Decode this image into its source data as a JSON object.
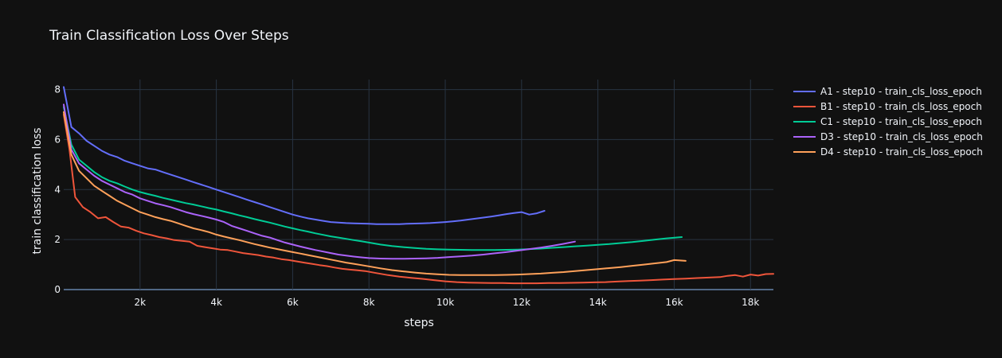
{
  "chart_data": {
    "type": "line",
    "title": "Train Classification Loss Over Steps",
    "xlabel": "steps",
    "ylabel": "train classification loss",
    "xlim": [
      0,
      18600
    ],
    "ylim": [
      0,
      8.4
    ],
    "grid": true,
    "legend_position": "top-right",
    "theme": {
      "background": "#111111",
      "grid": "#283442",
      "text": "#f2f5fa"
    },
    "x_ticks": [
      {
        "value": 2000,
        "label": "2k"
      },
      {
        "value": 4000,
        "label": "4k"
      },
      {
        "value": 6000,
        "label": "6k"
      },
      {
        "value": 8000,
        "label": "8k"
      },
      {
        "value": 10000,
        "label": "10k"
      },
      {
        "value": 12000,
        "label": "12k"
      },
      {
        "value": 14000,
        "label": "14k"
      },
      {
        "value": 16000,
        "label": "16k"
      },
      {
        "value": 18000,
        "label": "18k"
      }
    ],
    "y_ticks": [
      {
        "value": 0,
        "label": "0"
      },
      {
        "value": 2,
        "label": "2"
      },
      {
        "value": 4,
        "label": "4"
      },
      {
        "value": 6,
        "label": "6"
      },
      {
        "value": 8,
        "label": "8"
      }
    ],
    "series": [
      {
        "name": "A1 - step10 - train_cls_loss_epoch",
        "color": "#636efa",
        "x": [
          0,
          200,
          400,
          600,
          800,
          1000,
          1200,
          1400,
          1600,
          1800,
          2000,
          2200,
          2400,
          2600,
          2800,
          3000,
          3200,
          3400,
          3600,
          3800,
          4000,
          4200,
          4400,
          4600,
          4800,
          5000,
          5200,
          5400,
          5600,
          5800,
          6000,
          6200,
          6400,
          6600,
          6800,
          7000,
          7200,
          7400,
          7600,
          7800,
          8000,
          8200,
          8400,
          8600,
          8800,
          9000,
          9200,
          9400,
          9600,
          9800,
          10000,
          10200,
          10400,
          10600,
          10800,
          11000,
          11200,
          11400,
          11600,
          11800,
          12000,
          12200,
          12400,
          12600
        ],
        "y": [
          8.1,
          6.5,
          6.25,
          5.95,
          5.75,
          5.55,
          5.4,
          5.3,
          5.15,
          5.05,
          4.95,
          4.85,
          4.8,
          4.7,
          4.6,
          4.5,
          4.4,
          4.3,
          4.2,
          4.1,
          4.0,
          3.9,
          3.8,
          3.7,
          3.6,
          3.5,
          3.4,
          3.3,
          3.2,
          3.1,
          3.0,
          2.92,
          2.85,
          2.8,
          2.75,
          2.7,
          2.68,
          2.66,
          2.65,
          2.64,
          2.63,
          2.62,
          2.62,
          2.62,
          2.62,
          2.63,
          2.64,
          2.65,
          2.66,
          2.68,
          2.7,
          2.73,
          2.76,
          2.8,
          2.84,
          2.88,
          2.92,
          2.97,
          3.02,
          3.06,
          3.1,
          3.0,
          3.05,
          3.15
        ]
      },
      {
        "name": "B1 - step10 - train_cls_loss_epoch",
        "color": "#ef553b",
        "x": [
          0,
          150,
          300,
          500,
          700,
          900,
          1100,
          1300,
          1500,
          1700,
          1900,
          2100,
          2300,
          2500,
          2700,
          2900,
          3100,
          3300,
          3500,
          3700,
          3900,
          4100,
          4300,
          4500,
          4700,
          4900,
          5100,
          5300,
          5500,
          5700,
          5900,
          6100,
          6300,
          6500,
          6700,
          6900,
          7100,
          7300,
          7500,
          7700,
          7900,
          8200,
          8500,
          8800,
          9100,
          9400,
          9700,
          10000,
          10300,
          10600,
          10900,
          11200,
          11500,
          11800,
          12100,
          12400,
          12700,
          13000,
          13300,
          13600,
          13900,
          14200,
          14500,
          14800,
          15100,
          15400,
          15700,
          16000,
          16300,
          16600,
          16900,
          17200,
          17400,
          17600,
          17800,
          18000,
          18200,
          18400,
          18600
        ],
        "y": [
          7.0,
          5.6,
          3.7,
          3.3,
          3.1,
          2.85,
          2.9,
          2.7,
          2.52,
          2.48,
          2.35,
          2.25,
          2.18,
          2.1,
          2.05,
          1.98,
          1.95,
          1.92,
          1.75,
          1.7,
          1.65,
          1.6,
          1.58,
          1.52,
          1.46,
          1.42,
          1.38,
          1.32,
          1.28,
          1.22,
          1.18,
          1.13,
          1.08,
          1.03,
          0.98,
          0.94,
          0.88,
          0.83,
          0.8,
          0.77,
          0.74,
          0.66,
          0.58,
          0.52,
          0.47,
          0.43,
          0.38,
          0.33,
          0.3,
          0.28,
          0.27,
          0.26,
          0.26,
          0.25,
          0.25,
          0.25,
          0.26,
          0.26,
          0.27,
          0.28,
          0.29,
          0.3,
          0.32,
          0.34,
          0.36,
          0.38,
          0.4,
          0.42,
          0.44,
          0.46,
          0.48,
          0.5,
          0.55,
          0.58,
          0.52,
          0.6,
          0.56,
          0.62,
          0.63
        ]
      },
      {
        "name": "C1 - step10 - train_cls_loss_epoch",
        "color": "#00cc96",
        "x": [
          0,
          200,
          400,
          600,
          800,
          1000,
          1200,
          1400,
          1600,
          1800,
          2000,
          2200,
          2400,
          2600,
          2800,
          3000,
          3200,
          3400,
          3600,
          3800,
          4000,
          4200,
          4400,
          4600,
          4800,
          5000,
          5200,
          5400,
          5600,
          5800,
          6000,
          6200,
          6400,
          6600,
          6800,
          7000,
          7200,
          7400,
          7600,
          7800,
          8000,
          8300,
          8600,
          8900,
          9200,
          9500,
          9800,
          10100,
          10400,
          10700,
          11000,
          11300,
          11600,
          11900,
          12200,
          12500,
          12800,
          13100,
          13400,
          13700,
          14000,
          14300,
          14600,
          14900,
          15200,
          15500,
          15800,
          16200
        ],
        "y": [
          7.3,
          5.8,
          5.2,
          4.95,
          4.7,
          4.5,
          4.35,
          4.25,
          4.12,
          4.0,
          3.9,
          3.82,
          3.75,
          3.67,
          3.6,
          3.53,
          3.46,
          3.4,
          3.33,
          3.26,
          3.2,
          3.12,
          3.05,
          2.97,
          2.9,
          2.82,
          2.75,
          2.68,
          2.6,
          2.52,
          2.45,
          2.38,
          2.32,
          2.25,
          2.19,
          2.13,
          2.08,
          2.03,
          1.98,
          1.93,
          1.88,
          1.8,
          1.74,
          1.7,
          1.66,
          1.63,
          1.61,
          1.6,
          1.59,
          1.58,
          1.58,
          1.58,
          1.59,
          1.6,
          1.62,
          1.64,
          1.67,
          1.7,
          1.73,
          1.76,
          1.79,
          1.82,
          1.86,
          1.9,
          1.95,
          2.0,
          2.05,
          2.1
        ]
      },
      {
        "name": "D3 - step10 - train_cls_loss_epoch",
        "color": "#ab63fa",
        "x": [
          0,
          200,
          400,
          600,
          800,
          1000,
          1200,
          1400,
          1600,
          1800,
          2000,
          2200,
          2400,
          2600,
          2800,
          3000,
          3200,
          3400,
          3600,
          3800,
          4000,
          4200,
          4400,
          4600,
          4800,
          5000,
          5200,
          5400,
          5600,
          5800,
          6000,
          6200,
          6400,
          6600,
          6800,
          7000,
          7200,
          7400,
          7600,
          7800,
          8000,
          8300,
          8600,
          8900,
          9200,
          9500,
          9800,
          10100,
          10400,
          10700,
          11000,
          11300,
          11600,
          11900,
          12200,
          12500,
          12800,
          13100,
          13400
        ],
        "y": [
          7.4,
          5.6,
          5.05,
          4.8,
          4.55,
          4.35,
          4.2,
          4.05,
          3.9,
          3.8,
          3.65,
          3.55,
          3.45,
          3.38,
          3.3,
          3.2,
          3.1,
          3.02,
          2.95,
          2.88,
          2.8,
          2.7,
          2.55,
          2.45,
          2.35,
          2.25,
          2.15,
          2.08,
          1.98,
          1.88,
          1.8,
          1.72,
          1.65,
          1.58,
          1.52,
          1.46,
          1.4,
          1.36,
          1.32,
          1.29,
          1.26,
          1.24,
          1.23,
          1.23,
          1.24,
          1.25,
          1.27,
          1.3,
          1.33,
          1.36,
          1.4,
          1.45,
          1.5,
          1.56,
          1.62,
          1.68,
          1.75,
          1.83,
          1.92
        ]
      },
      {
        "name": "D4 - step10 - train_cls_loss_epoch",
        "color": "#ffa15a",
        "x": [
          0,
          200,
          400,
          600,
          800,
          1000,
          1200,
          1400,
          1600,
          1800,
          2000,
          2200,
          2400,
          2600,
          2800,
          3000,
          3200,
          3400,
          3600,
          3800,
          4000,
          4200,
          4400,
          4600,
          4800,
          5000,
          5200,
          5400,
          5600,
          5800,
          6000,
          6200,
          6400,
          6600,
          6800,
          7000,
          7200,
          7400,
          7600,
          7800,
          8000,
          8300,
          8600,
          8900,
          9200,
          9500,
          9800,
          10100,
          10400,
          10700,
          11000,
          11300,
          11600,
          11900,
          12200,
          12500,
          12800,
          13100,
          13400,
          13700,
          14000,
          14300,
          14600,
          14900,
          15200,
          15500,
          15800,
          16000,
          16300
        ],
        "y": [
          7.1,
          5.4,
          4.75,
          4.45,
          4.15,
          3.95,
          3.75,
          3.55,
          3.4,
          3.25,
          3.1,
          3.0,
          2.9,
          2.82,
          2.75,
          2.65,
          2.55,
          2.45,
          2.38,
          2.3,
          2.2,
          2.12,
          2.05,
          1.98,
          1.9,
          1.82,
          1.75,
          1.68,
          1.62,
          1.56,
          1.5,
          1.44,
          1.38,
          1.32,
          1.26,
          1.2,
          1.14,
          1.08,
          1.03,
          0.98,
          0.93,
          0.85,
          0.78,
          0.73,
          0.68,
          0.64,
          0.61,
          0.59,
          0.58,
          0.58,
          0.58,
          0.58,
          0.59,
          0.6,
          0.62,
          0.64,
          0.67,
          0.7,
          0.74,
          0.78,
          0.82,
          0.86,
          0.9,
          0.95,
          1.0,
          1.05,
          1.1,
          1.18,
          1.15
        ]
      }
    ]
  }
}
